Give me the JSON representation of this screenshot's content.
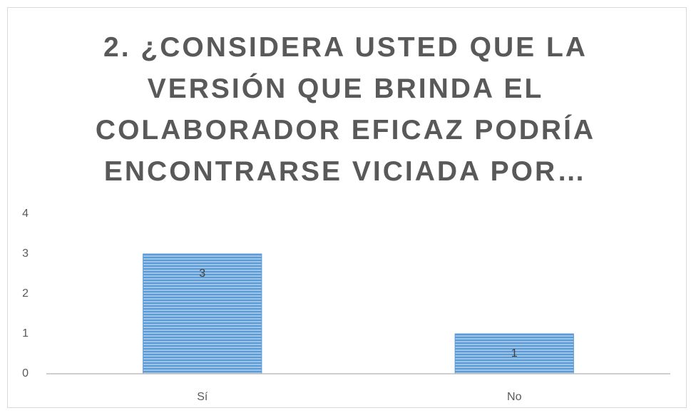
{
  "chart_data": {
    "type": "bar",
    "title": "2. ¿CONSIDERA USTED QUE LA VERSIÓN QUE BRINDA EL COLABORADOR EFICAZ PODRÍA ENCONTRARSE VICIADA POR…",
    "categories": [
      "Sí",
      "No"
    ],
    "values": [
      3,
      1
    ],
    "color": "#5b9bd5",
    "ylim": [
      0,
      4
    ],
    "yticks": [
      0,
      1,
      2,
      3,
      4
    ],
    "grid": false,
    "data_labels": true
  }
}
